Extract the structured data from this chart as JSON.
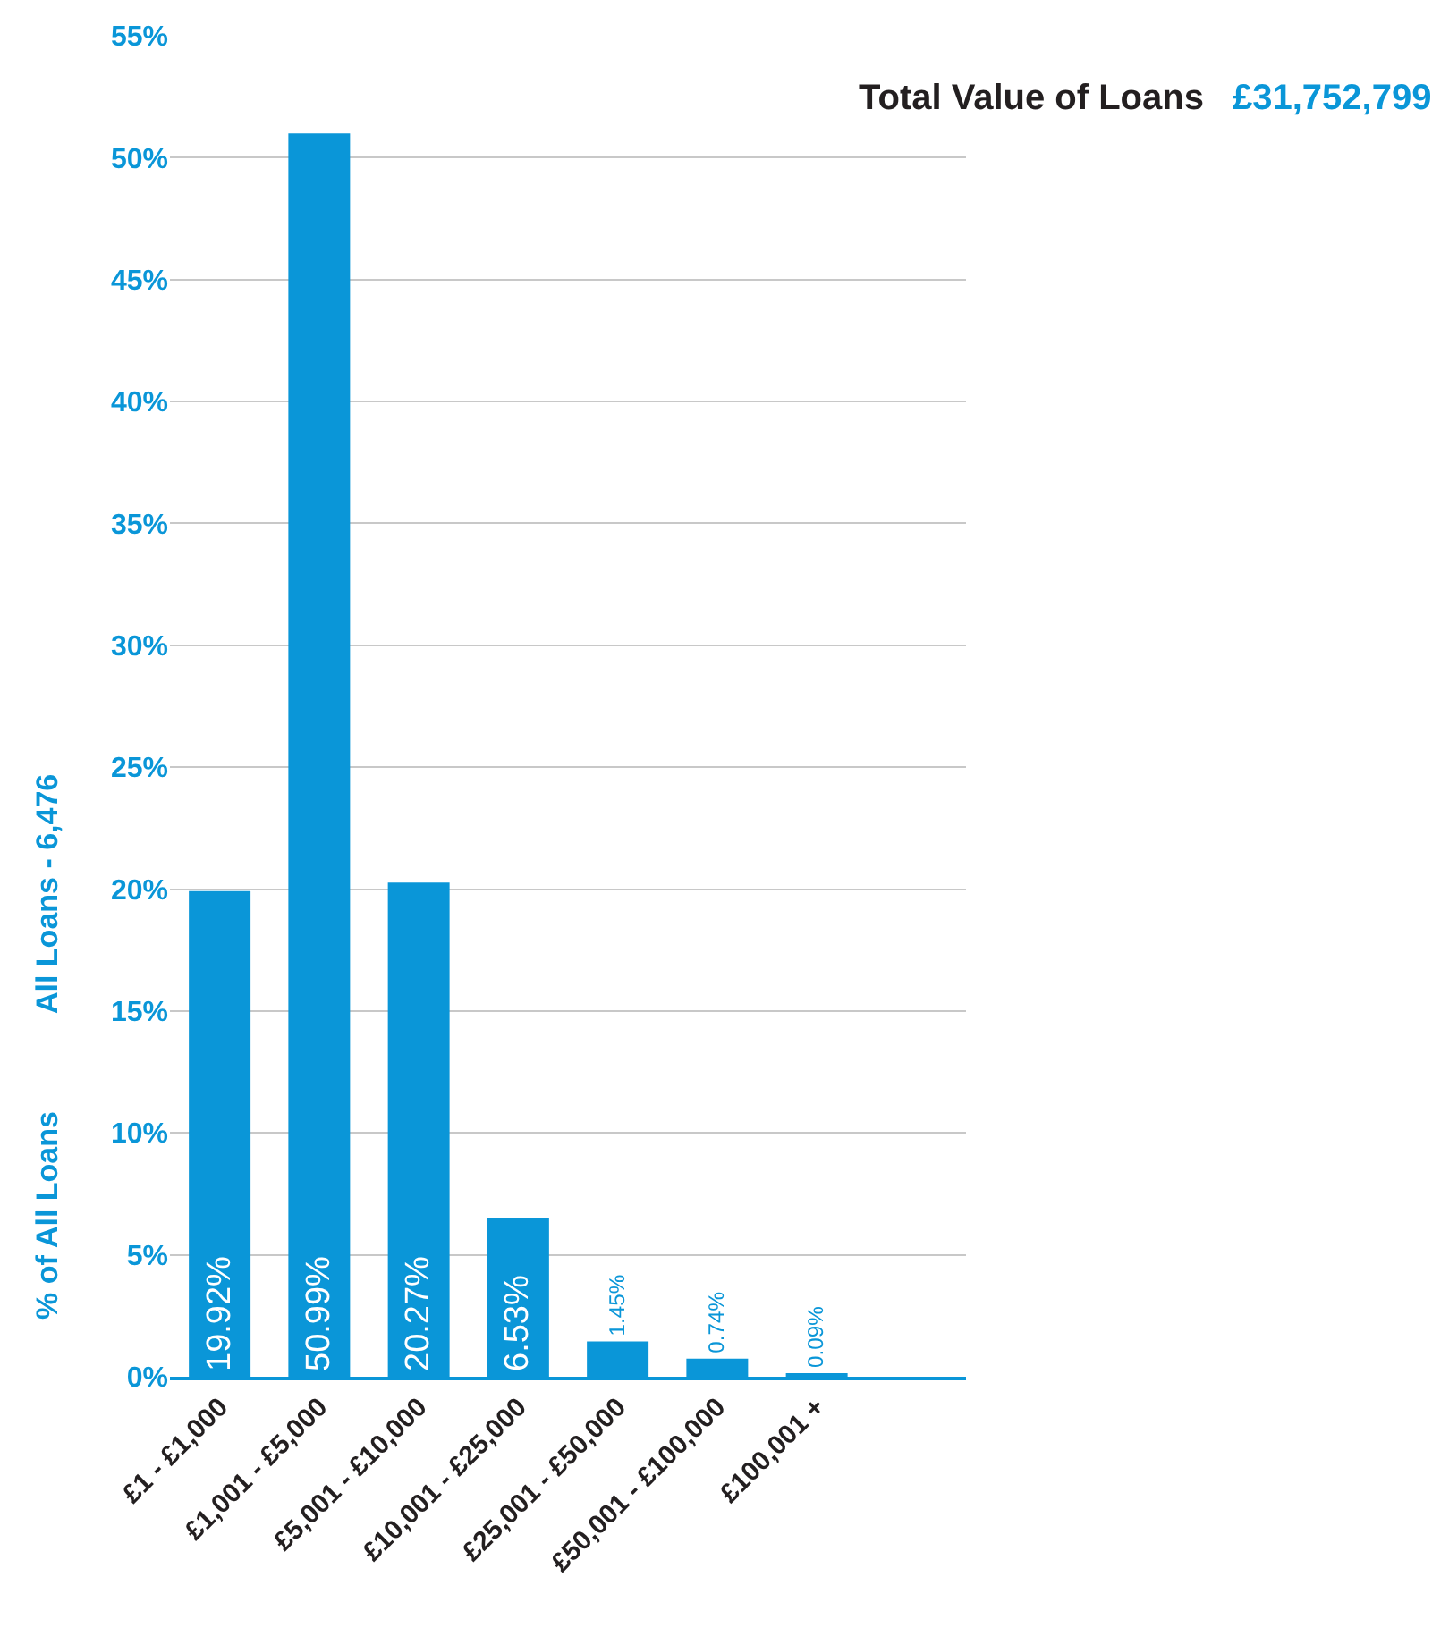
{
  "chart_data": {
    "type": "bar",
    "ylabel": "% of All Loans",
    "categories": [
      "£1 - £1,000",
      "£1,001 - £5,000",
      "£5,001 - £10,000",
      "£10,001 - £25,000",
      "£25,001 - £50,000",
      "£50,001 - £100,000",
      "£100,001 +",
      null
    ],
    "values": [
      19.92,
      50.99,
      20.27,
      6.53,
      1.45,
      0.74,
      0.09,
      null
    ],
    "value_labels": [
      "19.92%",
      "50.99%",
      "20.27%",
      "6.53%",
      "1.45%",
      "0.74%",
      "0.09%",
      null
    ],
    "color": "#0a96d8",
    "ylim": [
      0,
      55
    ],
    "yticks": [
      {
        "value": 0,
        "label": "0%"
      },
      {
        "value": 5,
        "label": "5%"
      },
      {
        "value": 10,
        "label": "10%"
      },
      {
        "value": 15,
        "label": "15%"
      },
      {
        "value": 20,
        "label": "20%"
      },
      {
        "value": 25,
        "label": "25%"
      },
      {
        "value": 30,
        "label": "30%"
      },
      {
        "value": 35,
        "label": "35%"
      },
      {
        "value": 40,
        "label": "40%"
      },
      {
        "value": 45,
        "label": "45%"
      },
      {
        "value": 50,
        "label": "50%"
      },
      {
        "value": 55,
        "label": "55%"
      }
    ],
    "grid": "y",
    "legend": false,
    "annotations": [
      "Total Value of Loans",
      "£31,752,799",
      "All Loans - 6,476"
    ]
  }
}
